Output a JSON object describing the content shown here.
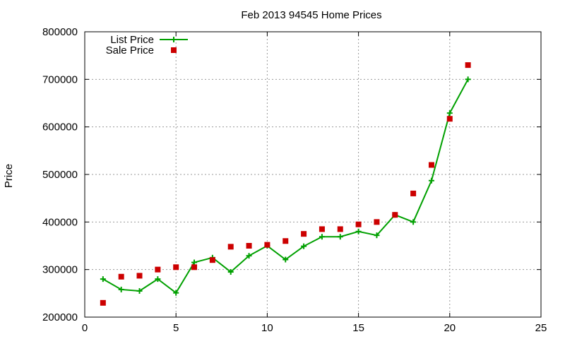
{
  "chart_data": {
    "type": "line",
    "title": "Feb 2013 94545 Home Prices",
    "xlabel": "",
    "ylabel": "Price",
    "xlim": [
      0,
      25
    ],
    "ylim": [
      200000,
      800000
    ],
    "x_ticks": [
      0,
      5,
      10,
      15,
      20,
      25
    ],
    "y_ticks": [
      200000,
      300000,
      400000,
      500000,
      600000,
      700000,
      800000
    ],
    "grid": true,
    "legend_position": "top-left",
    "series": [
      {
        "name": "List Price",
        "style": "line-with-plus-markers",
        "color": "#00a000",
        "points": [
          [
            1,
            280000
          ],
          [
            2,
            258000
          ],
          [
            3,
            255000
          ],
          [
            4,
            280000
          ],
          [
            5,
            251000
          ],
          [
            6,
            315000
          ],
          [
            7,
            325000
          ],
          [
            8,
            295000
          ],
          [
            9,
            329000
          ],
          [
            10,
            350000
          ],
          [
            11,
            321000
          ],
          [
            12,
            349000
          ],
          [
            13,
            369000
          ],
          [
            14,
            369000
          ],
          [
            15,
            380000
          ],
          [
            16,
            372000
          ],
          [
            17,
            415000
          ],
          [
            18,
            400000
          ],
          [
            19,
            487000
          ],
          [
            20,
            629000
          ],
          [
            21,
            700000
          ]
        ]
      },
      {
        "name": "Sale Price",
        "style": "square-markers",
        "color": "#cc0000",
        "points": [
          [
            1,
            230000
          ],
          [
            2,
            285000
          ],
          [
            3,
            287000
          ],
          [
            4,
            300000
          ],
          [
            5,
            305000
          ],
          [
            6,
            305000
          ],
          [
            7,
            320000
          ],
          [
            8,
            348000
          ],
          [
            9,
            350000
          ],
          [
            10,
            352000
          ],
          [
            11,
            360000
          ],
          [
            12,
            375000
          ],
          [
            13,
            385000
          ],
          [
            14,
            385000
          ],
          [
            15,
            395000
          ],
          [
            16,
            400000
          ],
          [
            17,
            415000
          ],
          [
            18,
            460000
          ],
          [
            19,
            520000
          ],
          [
            20,
            617000
          ],
          [
            21,
            730000
          ]
        ]
      }
    ]
  }
}
